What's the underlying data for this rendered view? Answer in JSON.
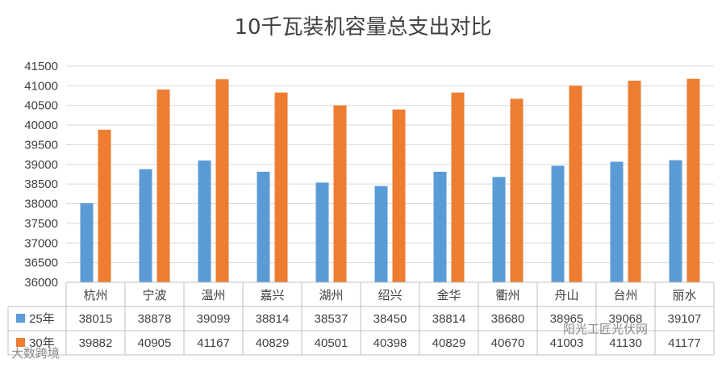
{
  "chart_data": {
    "type": "bar",
    "title": "10千瓦装机容量总支出对比",
    "categories": [
      "杭州",
      "宁波",
      "温州",
      "嘉兴",
      "湖州",
      "绍兴",
      "金华",
      "衢州",
      "舟山",
      "台州",
      "丽水"
    ],
    "series": [
      {
        "name": "25年",
        "color": "#5b9bd5",
        "values": [
          38015,
          38878,
          39099,
          38814,
          38537,
          38450,
          38814,
          38680,
          38965,
          39068,
          39107
        ]
      },
      {
        "name": "30年",
        "color": "#ed7d31",
        "values": [
          39882,
          40905,
          41167,
          40829,
          40501,
          40398,
          40829,
          40670,
          41003,
          41130,
          41177
        ]
      }
    ],
    "ylim": [
      36000,
      41500
    ],
    "ytick_step": 500,
    "grid": true,
    "legend": "data-table"
  },
  "watermarks": {
    "left": "大数跨境",
    "right": "阳光工匠光伏网"
  }
}
